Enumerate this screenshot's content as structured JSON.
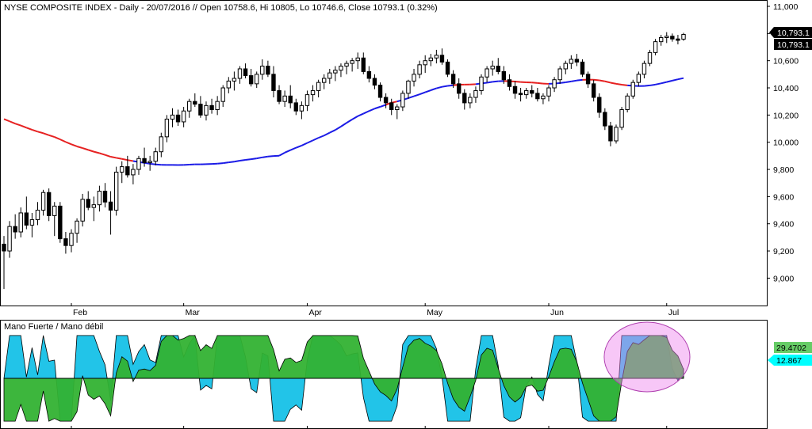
{
  "chart_data": [
    {
      "type": "candlestick",
      "title": "NYSE COMPOSITE INDEX - Daily - 20/07/2016 // Open 10758.6, Hi 10805, Lo 10746.6, Close 10793.1 (0.32%)",
      "ylim": [
        8880,
        11000
      ],
      "y_ticks": [
        "11,000",
        "10,800",
        "10,600",
        "10,400",
        "10,200",
        "10,000",
        "9,800",
        "9,600",
        "9,400",
        "9,200",
        "9,000"
      ],
      "y_tick_values": [
        11000,
        10800,
        10600,
        10400,
        10200,
        10000,
        9800,
        9600,
        9400,
        9200,
        9000
      ],
      "x_months": [
        {
          "label": "Feb",
          "index": 12
        },
        {
          "label": "Mar",
          "index": 32
        },
        {
          "label": "Apr",
          "index": 54
        },
        {
          "label": "May",
          "index": 75
        },
        {
          "label": "Jun",
          "index": 97
        },
        {
          "label": "Jul",
          "index": 118
        }
      ],
      "last_price_labels": [
        "10,793.1",
        "10,793.1"
      ],
      "last_price": 10793.1,
      "ohlc": [
        [
          9250,
          9310,
          8920,
          9200
        ],
        [
          9200,
          9420,
          9150,
          9380
        ],
        [
          9380,
          9470,
          9290,
          9340
        ],
        [
          9340,
          9520,
          9300,
          9480
        ],
        [
          9480,
          9600,
          9360,
          9390
        ],
        [
          9390,
          9480,
          9300,
          9430
        ],
        [
          9430,
          9560,
          9390,
          9500
        ],
        [
          9500,
          9650,
          9460,
          9630
        ],
        [
          9630,
          9660,
          9420,
          9460
        ],
        [
          9460,
          9560,
          9310,
          9530
        ],
        [
          9530,
          9560,
          9260,
          9290
        ],
        [
          9290,
          9340,
          9180,
          9240
        ],
        [
          9240,
          9360,
          9190,
          9330
        ],
        [
          9330,
          9440,
          9260,
          9420
        ],
        [
          9420,
          9620,
          9380,
          9580
        ],
        [
          9580,
          9640,
          9500,
          9520
        ],
        [
          9520,
          9600,
          9420,
          9540
        ],
        [
          9540,
          9680,
          9490,
          9640
        ],
        [
          9640,
          9700,
          9520,
          9560
        ],
        [
          9560,
          9640,
          9320,
          9500
        ],
        [
          9500,
          9820,
          9460,
          9780
        ],
        [
          9780,
          9860,
          9700,
          9820
        ],
        [
          9820,
          9900,
          9740,
          9760
        ],
        [
          9760,
          9840,
          9690,
          9800
        ],
        [
          9800,
          9900,
          9760,
          9880
        ],
        [
          9880,
          9960,
          9820,
          9850
        ],
        [
          9850,
          9900,
          9790,
          9860
        ],
        [
          9860,
          9960,
          9830,
          9930
        ],
        [
          9930,
          10070,
          9890,
          10040
        ],
        [
          10040,
          10200,
          10000,
          10170
        ],
        [
          10170,
          10250,
          10110,
          10200
        ],
        [
          10200,
          10240,
          10120,
          10150
        ],
        [
          10150,
          10260,
          10110,
          10230
        ],
        [
          10230,
          10320,
          10180,
          10300
        ],
        [
          10300,
          10360,
          10260,
          10280
        ],
        [
          10280,
          10340,
          10180,
          10200
        ],
        [
          10200,
          10300,
          10160,
          10270
        ],
        [
          10270,
          10320,
          10210,
          10240
        ],
        [
          10240,
          10340,
          10200,
          10300
        ],
        [
          10300,
          10420,
          10260,
          10400
        ],
        [
          10400,
          10480,
          10360,
          10450
        ],
        [
          10450,
          10520,
          10380,
          10470
        ],
        [
          10470,
          10560,
          10430,
          10540
        ],
        [
          10540,
          10580,
          10470,
          10490
        ],
        [
          10490,
          10540,
          10410,
          10430
        ],
        [
          10430,
          10520,
          10400,
          10500
        ],
        [
          10500,
          10610,
          10460,
          10560
        ],
        [
          10560,
          10600,
          10480,
          10500
        ],
        [
          10500,
          10560,
          10330,
          10380
        ],
        [
          10380,
          10420,
          10280,
          10300
        ],
        [
          10300,
          10380,
          10260,
          10340
        ],
        [
          10340,
          10420,
          10250,
          10290
        ],
        [
          10290,
          10320,
          10200,
          10230
        ],
        [
          10230,
          10300,
          10170,
          10270
        ],
        [
          10270,
          10380,
          10230,
          10350
        ],
        [
          10350,
          10420,
          10300,
          10380
        ],
        [
          10380,
          10460,
          10330,
          10440
        ],
        [
          10440,
          10500,
          10390,
          10470
        ],
        [
          10470,
          10540,
          10430,
          10510
        ],
        [
          10510,
          10560,
          10450,
          10530
        ],
        [
          10530,
          10580,
          10480,
          10560
        ],
        [
          10560,
          10600,
          10500,
          10580
        ],
        [
          10580,
          10620,
          10520,
          10600
        ],
        [
          10600,
          10660,
          10540,
          10620
        ],
        [
          10620,
          10660,
          10500,
          10520
        ],
        [
          10520,
          10560,
          10440,
          10470
        ],
        [
          10470,
          10500,
          10390,
          10420
        ],
        [
          10420,
          10440,
          10300,
          10330
        ],
        [
          10330,
          10360,
          10250,
          10290
        ],
        [
          10290,
          10320,
          10200,
          10240
        ],
        [
          10240,
          10280,
          10170,
          10260
        ],
        [
          10260,
          10380,
          10230,
          10360
        ],
        [
          10360,
          10460,
          10320,
          10450
        ],
        [
          10450,
          10540,
          10410,
          10500
        ],
        [
          10500,
          10600,
          10470,
          10570
        ],
        [
          10570,
          10640,
          10510,
          10600
        ],
        [
          10600,
          10650,
          10560,
          10620
        ],
        [
          10620,
          10680,
          10580,
          10640
        ],
        [
          10640,
          10690,
          10570,
          10590
        ],
        [
          10590,
          10610,
          10480,
          10500
        ],
        [
          10500,
          10530,
          10400,
          10430
        ],
        [
          10430,
          10470,
          10320,
          10360
        ],
        [
          10360,
          10390,
          10240,
          10290
        ],
        [
          10290,
          10360,
          10250,
          10330
        ],
        [
          10330,
          10410,
          10290,
          10380
        ],
        [
          10380,
          10500,
          10350,
          10480
        ],
        [
          10480,
          10560,
          10440,
          10540
        ],
        [
          10540,
          10600,
          10490,
          10560
        ],
        [
          10560,
          10620,
          10500,
          10520
        ],
        [
          10520,
          10560,
          10430,
          10460
        ],
        [
          10460,
          10500,
          10380,
          10410
        ],
        [
          10410,
          10450,
          10320,
          10360
        ],
        [
          10360,
          10400,
          10300,
          10350
        ],
        [
          10350,
          10400,
          10320,
          10380
        ],
        [
          10380,
          10420,
          10330,
          10360
        ],
        [
          10360,
          10400,
          10300,
          10320
        ],
        [
          10320,
          10360,
          10280,
          10340
        ],
        [
          10340,
          10420,
          10300,
          10400
        ],
        [
          10400,
          10480,
          10370,
          10460
        ],
        [
          10460,
          10560,
          10430,
          10540
        ],
        [
          10540,
          10600,
          10500,
          10580
        ],
        [
          10580,
          10640,
          10540,
          10610
        ],
        [
          10610,
          10650,
          10560,
          10590
        ],
        [
          10590,
          10610,
          10480,
          10500
        ],
        [
          10500,
          10520,
          10400,
          10430
        ],
        [
          10430,
          10460,
          10300,
          10330
        ],
        [
          10330,
          10360,
          10180,
          10220
        ],
        [
          10220,
          10250,
          10090,
          10120
        ],
        [
          10120,
          10150,
          9970,
          10010
        ],
        [
          10010,
          10130,
          9990,
          10110
        ],
        [
          10110,
          10260,
          10090,
          10240
        ],
        [
          10240,
          10360,
          10220,
          10340
        ],
        [
          10340,
          10460,
          10320,
          10440
        ],
        [
          10440,
          10520,
          10410,
          10500
        ],
        [
          10500,
          10600,
          10470,
          10580
        ],
        [
          10580,
          10680,
          10560,
          10660
        ],
        [
          10660,
          10760,
          10640,
          10740
        ],
        [
          10740,
          10790,
          10710,
          10770
        ],
        [
          10770,
          10810,
          10730,
          10780
        ],
        [
          10780,
          10800,
          10740,
          10760
        ],
        [
          10760,
          10790,
          10720,
          10750
        ],
        [
          10758.6,
          10805,
          10746.6,
          10793.1
        ]
      ],
      "series": [
        {
          "name": "",
          "type": "moving-average",
          "values": []
        }
      ]
    },
    {
      "type": "area",
      "title": "Mano Fuerte / Mano débil",
      "ylim": [
        -30,
        30
      ],
      "zero": 0,
      "value_labels": [
        "29.4702",
        "12.867"
      ],
      "last_values": [
        29.4702,
        12.867
      ],
      "highlight_region": {
        "from_index": 108,
        "to_index": 121
      }
    }
  ],
  "colors": {
    "up_candle": "#ffffff",
    "down_candle": "#000000",
    "ma_above": "#1a1ae6",
    "ma_below": "#e62020",
    "strong_hand": "#22c4e8",
    "weak_hand": "#33b233",
    "highlight": "#ee82ee",
    "badge_green": "#66cc66",
    "badge_cyan": "#00ffff",
    "grid": "#000000"
  }
}
